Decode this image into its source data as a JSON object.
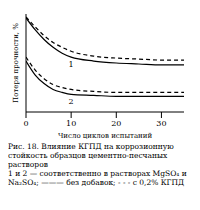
{
  "chart_data": {
    "type": "line",
    "title": "Рис. 18. Влияние КГПД на коррозионную стойкость образцов цементно-песчаных растворов",
    "subtitle": "1 и 2 — соответственно в растворах MgSO₄ и Na₂SO₄; ——— без добавок; - - - с 0,2% КГПД",
    "x_label": "Число циклов испытаний",
    "y_label": "Потеря прочности, %",
    "x": [
      0,
      2,
      4,
      6,
      8,
      10,
      15,
      20,
      25,
      30,
      35
    ],
    "series": [
      {
        "name": "1",
        "color": "#000000",
        "line_style": "solid",
        "values": [
          96,
          84,
          74,
          66,
          60,
          56,
          52,
          50,
          49,
          48,
          48
        ]
      },
      {
        "name": "1",
        "color": "#000000",
        "line_style": "dashed",
        "values": [
          97,
          87,
          78,
          71,
          66,
          62,
          57,
          55,
          54,
          53,
          53
        ]
      },
      {
        "name": "2",
        "color": "#000000",
        "line_style": "solid",
        "values": [
          52,
          38,
          29,
          23,
          20,
          18,
          17,
          16,
          16,
          16,
          16
        ]
      },
      {
        "name": "2",
        "color": "#000000",
        "line_style": "dashed",
        "values": [
          56,
          43,
          34,
          28,
          25,
          23,
          21,
          20,
          20,
          20,
          20
        ]
      }
    ],
    "xlim": [
      0,
      35
    ],
    "xticks": [
      0,
      10,
      20,
      30
    ],
    "ylim": [
      0,
      100
    ],
    "tick_labels": "x",
    "grid": false
  }
}
